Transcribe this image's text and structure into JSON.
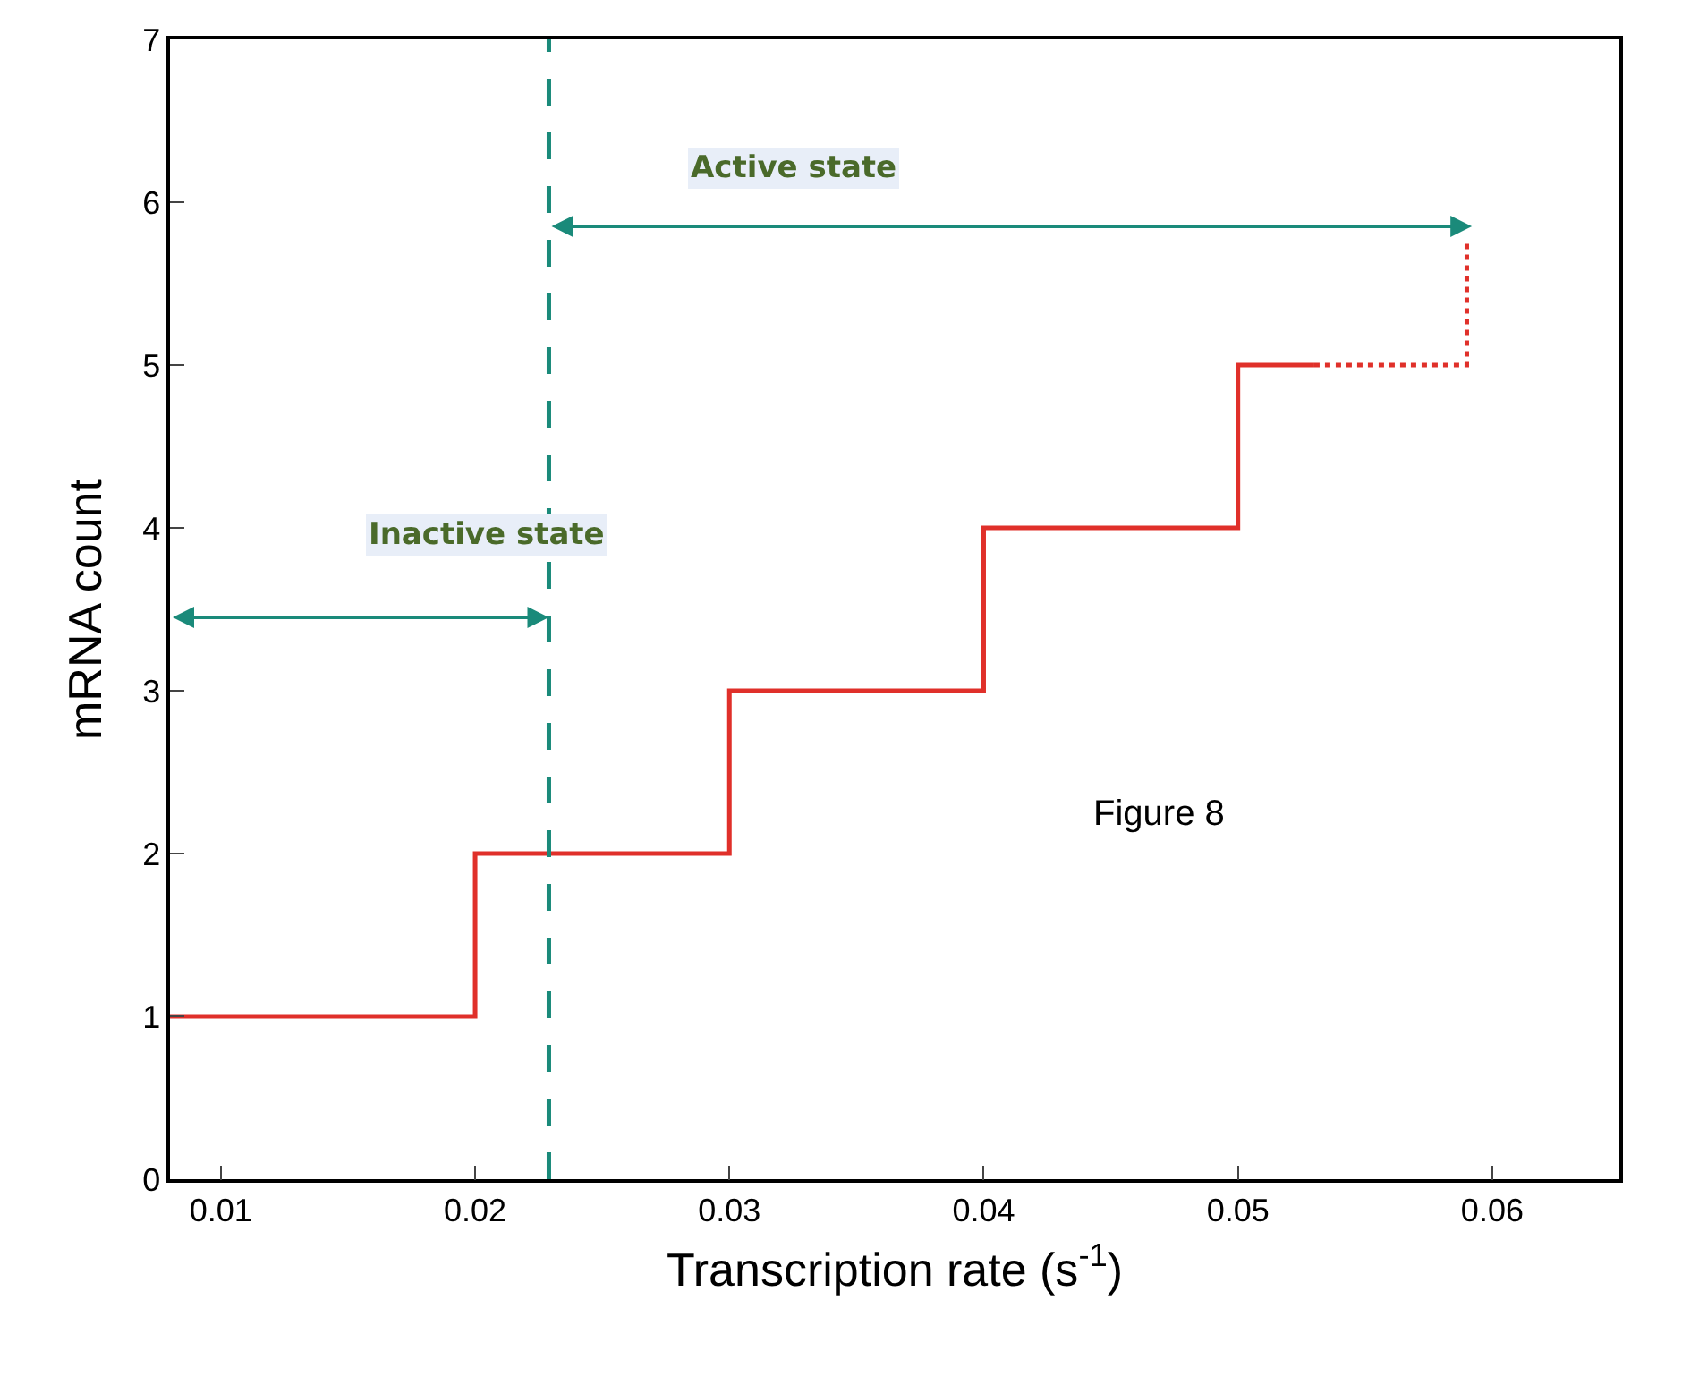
{
  "chart_data": {
    "type": "step",
    "xlabel": "Transcription rate (s$^{-1}$)",
    "ylabel": "mRNA count",
    "xlim": [
      0.008,
      0.065
    ],
    "xticks": [
      0.01,
      0.02,
      0.03,
      0.04,
      0.05,
      0.06
    ],
    "ylim": [
      0,
      7
    ],
    "yticks": [
      0,
      1,
      2,
      3,
      4,
      5,
      6,
      7
    ],
    "marker": "none",
    "series": [
      {
        "color": "#e0302a",
        "line_style": "solid",
        "x": [
          0.008,
          0.02,
          0.03,
          0.04,
          0.05,
          0.053
        ],
        "values": [
          1,
          2,
          3,
          4,
          5,
          5
        ]
      },
      {
        "color": "#e0302a",
        "line_style": "dotted",
        "x": [
          0.053,
          0.059,
          0.059
        ],
        "values": [
          5,
          5,
          5.75
        ]
      }
    ],
    "ref_lines": [
      {
        "axis": "x",
        "value": 0.0229,
        "color": "#1a8a7a",
        "line_style": "dashed"
      }
    ],
    "annotations": [
      "Inactive state",
      "Active state",
      "Figure 8"
    ]
  }
}
